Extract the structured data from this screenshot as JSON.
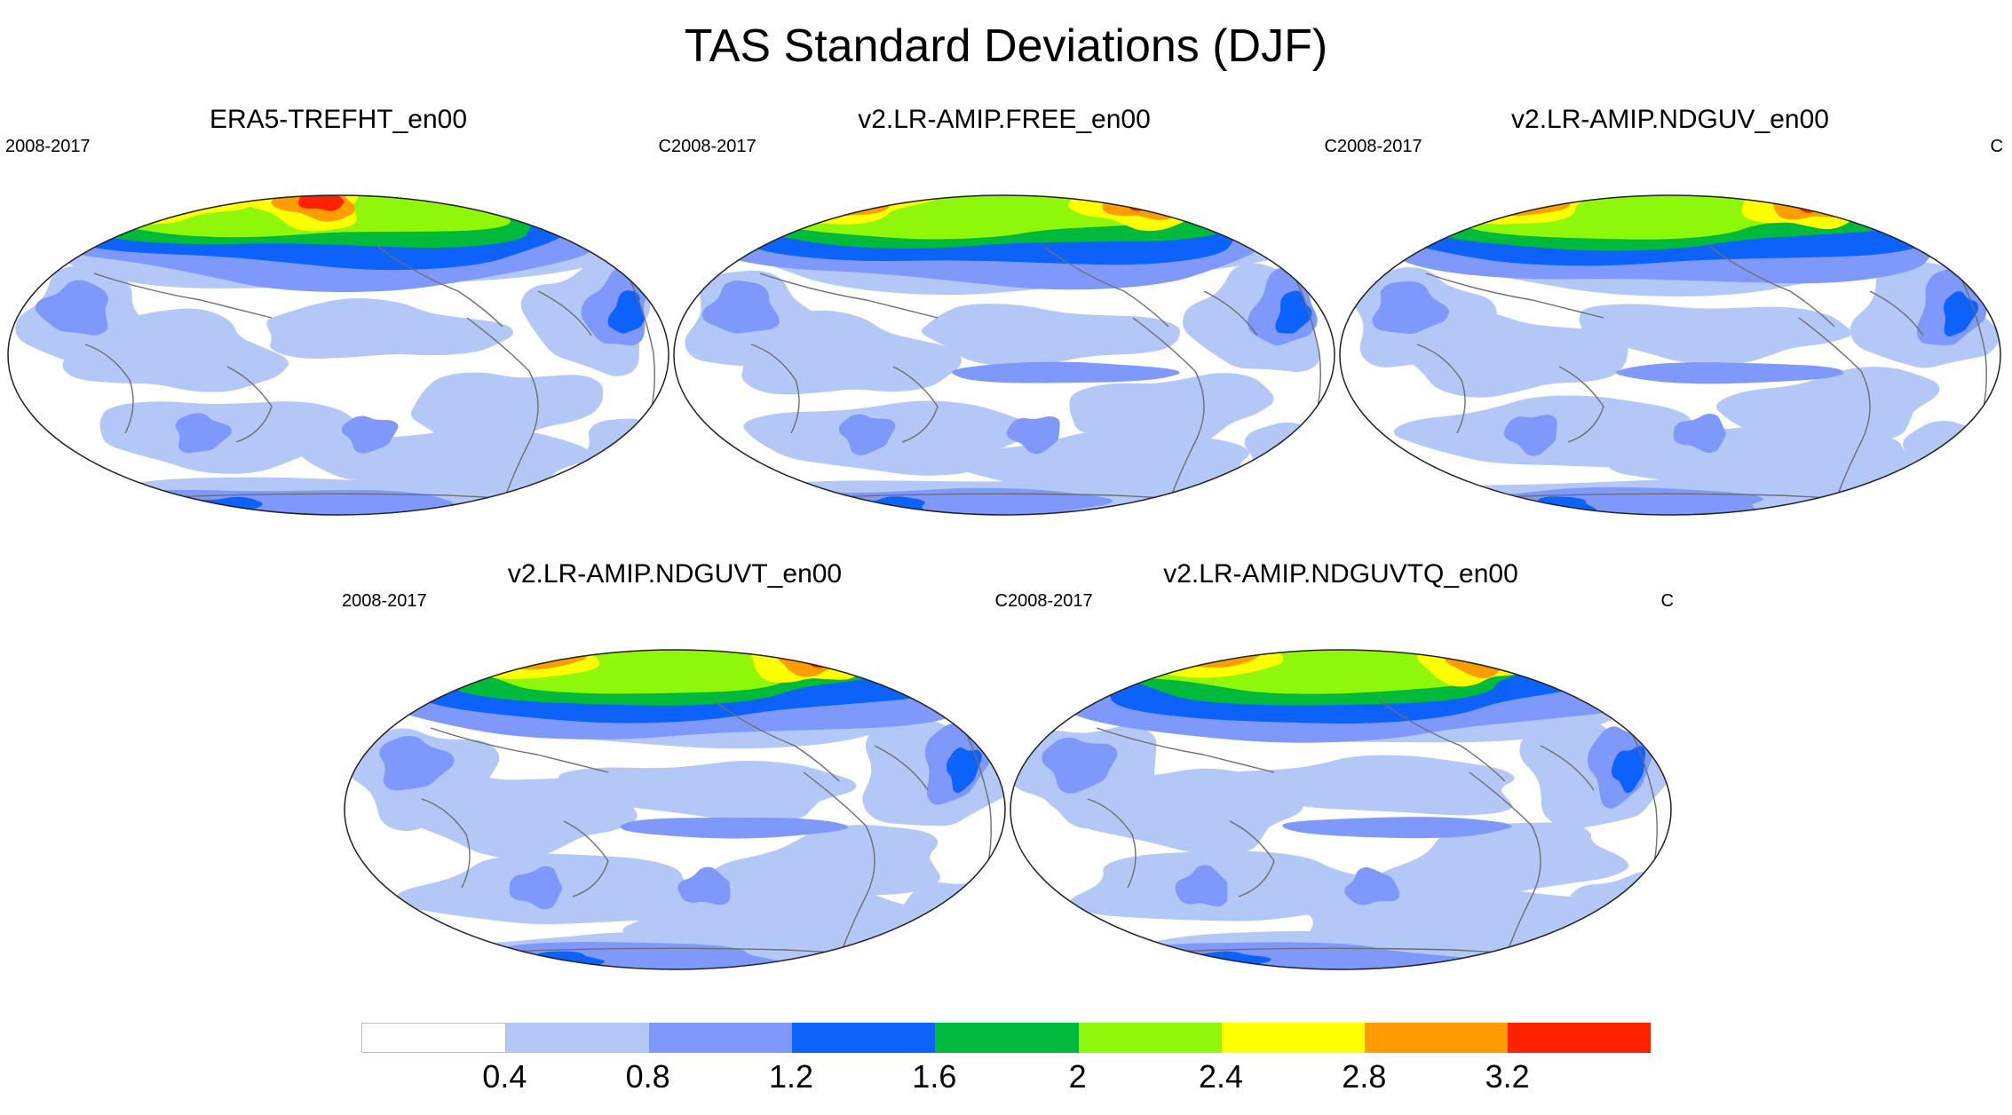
{
  "title": "TAS Standard Deviations (DJF)",
  "panels": [
    {
      "title": "ERA5-TREFHT_en00",
      "period": "2008-2017",
      "units": "C",
      "variant": 0
    },
    {
      "title": "v2.LR-AMIP.FREE_en00",
      "period": "2008-2017",
      "units": "C",
      "variant": 1
    },
    {
      "title": "v2.LR-AMIP.NDGUV_en00",
      "period": "2008-2017",
      "units": "C",
      "variant": 2
    },
    {
      "title": "v2.LR-AMIP.NDGUVT_en00",
      "period": "2008-2017",
      "units": "C",
      "variant": 3
    },
    {
      "title": "v2.LR-AMIP.NDGUVTQ_en00",
      "period": "2008-2017",
      "units": "C",
      "variant": 4
    }
  ],
  "colorbar": {
    "colors": [
      "#ffffff",
      "#b4c8f8",
      "#7f98fb",
      "#0d62fb",
      "#00ba3c",
      "#8ef70a",
      "#ffff00",
      "#ff9c00",
      "#ff2200"
    ],
    "labels": [
      "0.4",
      "0.8",
      "1.2",
      "1.6",
      "2",
      "2.4",
      "2.8",
      "3.2"
    ]
  }
}
